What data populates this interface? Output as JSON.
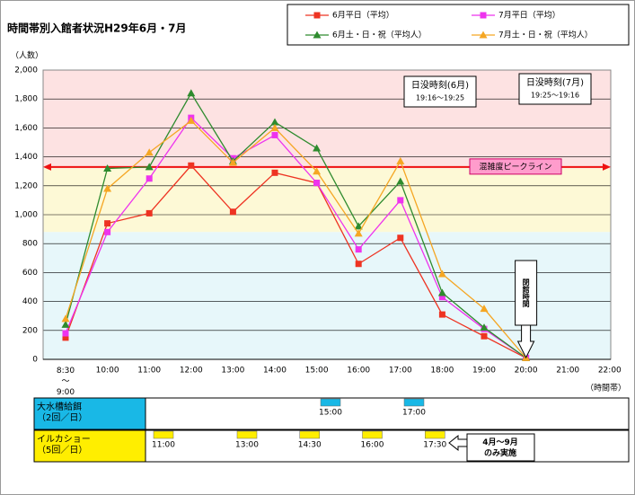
{
  "chart_data": {
    "type": "line",
    "title": "時間帯別入館者状況H29年6月・7月",
    "y_label": "（人数）",
    "x_label": "（時間帯）",
    "categories": [
      "8:30\n～\n9:00",
      "10:00",
      "11:00",
      "12:00",
      "13:00",
      "14:00",
      "15:00",
      "16:00",
      "17:00",
      "18:00",
      "19:00",
      "20:00",
      "21:00",
      "22:00"
    ],
    "series": [
      {
        "name": "6月平日（平均）",
        "color": "#ee3322",
        "marker": "square",
        "values": [
          150,
          940,
          1010,
          1340,
          1020,
          1290,
          1220,
          660,
          840,
          310,
          160,
          10,
          null,
          null
        ]
      },
      {
        "name": "7月平日（平均）",
        "color": "#ee33ee",
        "marker": "square",
        "values": [
          180,
          880,
          1250,
          1670,
          1390,
          1550,
          1220,
          760,
          1100,
          430,
          210,
          10,
          null,
          null
        ]
      },
      {
        "name": "6月土・日・祝（平均人）",
        "color": "#2e8b2e",
        "marker": "triangle",
        "values": [
          240,
          1320,
          1330,
          1840,
          1370,
          1640,
          1460,
          920,
          1230,
          460,
          220,
          10,
          null,
          null
        ]
      },
      {
        "name": "7月土・日・祝（平均人）",
        "color": "#f5a623",
        "marker": "triangle",
        "values": [
          280,
          1180,
          1430,
          1650,
          1360,
          1600,
          1300,
          870,
          1370,
          590,
          350,
          10,
          null,
          null
        ]
      }
    ],
    "ylim": [
      0,
      2000
    ],
    "yticks": [
      0,
      200,
      400,
      600,
      800,
      {
        "value": 1000,
        "label": "1,000"
      },
      {
        "value": 1200,
        "label": "1,200"
      },
      {
        "value": 1400,
        "label": "1,400"
      },
      {
        "value": 1600,
        "label": "1,600"
      },
      {
        "value": 1800,
        "label": "1,800"
      },
      {
        "value": 2000,
        "label": "2,000"
      }
    ],
    "grid": true,
    "bands": [
      {
        "from": 1320,
        "to": 2000,
        "color": "#fde2e2"
      },
      {
        "from": 880,
        "to": 1320,
        "color": "#fdf9d6"
      },
      {
        "from": 0,
        "to": 880,
        "color": "#e7f7fa"
      }
    ],
    "peak_line": {
      "label": "混雑度ピークライン",
      "value": 1330,
      "color": "#ee1111"
    },
    "sunset": [
      {
        "title": "日没時刻(6月)",
        "range": "19:16～19:25"
      },
      {
        "title": "日没時刻(7月)",
        "range": "19:25～19:16"
      }
    ],
    "closing": "閉館時間",
    "schedule": [
      {
        "label": "大水槽給餌\n（2回／日）",
        "color": "#19b8e6",
        "times": [
          "15:00",
          "17:00"
        ]
      },
      {
        "label": "イルカショー\n（5回／日）",
        "color": "#ffee00",
        "times": [
          "11:00",
          "13:00",
          "14:30",
          "16:00",
          "17:30"
        ]
      }
    ],
    "schedule_note": "4月～9月\nのみ実施"
  }
}
